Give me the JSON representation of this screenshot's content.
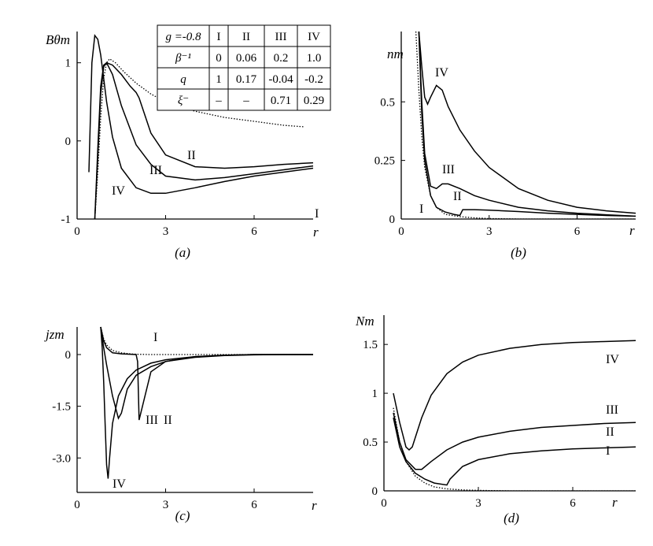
{
  "figure_captions": [
    "(a)",
    "(b)",
    "(c)",
    "(d)"
  ],
  "param_table": {
    "header": [
      "g =-0.8",
      "I",
      "II",
      "III",
      "IV"
    ],
    "rows": [
      {
        "label": "β⁻¹",
        "values": [
          "0",
          "0.06",
          "0.2",
          "1.0"
        ]
      },
      {
        "label": "q",
        "values": [
          "1",
          "0.17",
          "-0.04",
          "-0.2"
        ]
      },
      {
        "label": "ξ⁻",
        "values": [
          "–",
          "–",
          "0.71",
          "0.29"
        ]
      }
    ]
  },
  "chart_data": [
    {
      "type": "line",
      "panel": "a",
      "ylabel": "Bθm",
      "xlabel": "r",
      "xlim": [
        0,
        8
      ],
      "ylim": [
        -1,
        1.4
      ],
      "xticks": [
        "0",
        "3",
        "6"
      ],
      "yticks": [
        "-1",
        "0",
        "1"
      ],
      "series": [
        {
          "name": "I",
          "style": "dotted",
          "x": [
            0.6,
            0.7,
            0.8,
            0.9,
            1.0,
            1.1,
            1.3,
            1.6,
            2.0,
            2.5,
            3.0,
            4.0,
            5.0,
            6.0,
            7.0,
            7.7
          ],
          "y": [
            -1.0,
            -0.4,
            0.3,
            0.8,
            1.0,
            1.05,
            1.0,
            0.88,
            0.74,
            0.6,
            0.5,
            0.38,
            0.3,
            0.25,
            0.2,
            0.18
          ]
        },
        {
          "name": "II",
          "style": "solid",
          "x": [
            0.6,
            0.7,
            0.8,
            0.9,
            1.0,
            1.2,
            1.5,
            1.8,
            2.0,
            2.1,
            2.5,
            3.0,
            4.0,
            5.0,
            6.0,
            7.0,
            8.0
          ],
          "y": [
            -1.0,
            -0.2,
            0.6,
            0.95,
            1.0,
            0.97,
            0.85,
            0.7,
            0.62,
            0.55,
            0.1,
            -0.18,
            -0.33,
            -0.35,
            -0.33,
            -0.3,
            -0.28
          ]
        },
        {
          "name": "III",
          "style": "solid",
          "x": [
            0.6,
            0.7,
            0.8,
            0.9,
            1.0,
            1.2,
            1.5,
            2.0,
            2.5,
            3.0,
            4.0,
            5.0,
            6.0,
            7.0,
            8.0
          ],
          "y": [
            -1.0,
            -0.1,
            0.7,
            0.97,
            1.0,
            0.85,
            0.45,
            -0.05,
            -0.3,
            -0.45,
            -0.5,
            -0.47,
            -0.42,
            -0.37,
            -0.32
          ]
        },
        {
          "name": "IV",
          "style": "solid",
          "x": [
            0.4,
            0.5,
            0.6,
            0.7,
            0.8,
            0.9,
            1.0,
            1.2,
            1.5,
            2.0,
            2.5,
            3.0,
            4.0,
            5.0,
            6.0,
            7.0,
            8.0
          ],
          "y": [
            -0.4,
            1.0,
            1.35,
            1.3,
            1.1,
            0.8,
            0.5,
            0.05,
            -0.35,
            -0.6,
            -0.67,
            -0.67,
            -0.6,
            -0.52,
            -0.45,
            -0.4,
            -0.35
          ]
        }
      ]
    },
    {
      "type": "line",
      "panel": "b",
      "ylabel": "nm",
      "xlabel": "r",
      "xlim": [
        0,
        8
      ],
      "ylim": [
        0,
        0.8
      ],
      "xticks": [
        "0",
        "3",
        "6"
      ],
      "yticks": [
        "0",
        "0.25",
        "0.5"
      ],
      "series": [
        {
          "name": "I",
          "style": "dotted",
          "x": [
            0.5,
            0.6,
            0.7,
            0.8,
            1.0,
            1.2,
            1.5,
            2.0,
            2.5,
            3.0,
            4.0,
            6.0,
            8.0
          ],
          "y": [
            0.8,
            0.55,
            0.35,
            0.22,
            0.1,
            0.05,
            0.02,
            0.01,
            0.005,
            0.002,
            0.0,
            0.0,
            0.0
          ]
        },
        {
          "name": "II",
          "style": "solid",
          "x": [
            0.6,
            0.7,
            0.8,
            1.0,
            1.2,
            1.5,
            1.8,
            2.0,
            2.1,
            2.5,
            3.0,
            4.0,
            5.0,
            6.0,
            7.0,
            8.0
          ],
          "y": [
            0.8,
            0.45,
            0.25,
            0.1,
            0.05,
            0.03,
            0.02,
            0.015,
            0.04,
            0.04,
            0.038,
            0.032,
            0.025,
            0.02,
            0.015,
            0.012
          ]
        },
        {
          "name": "III",
          "style": "solid",
          "x": [
            0.6,
            0.7,
            0.8,
            1.0,
            1.2,
            1.4,
            1.6,
            2.0,
            2.5,
            3.0,
            4.0,
            5.0,
            6.0,
            7.0,
            8.0
          ],
          "y": [
            0.8,
            0.5,
            0.28,
            0.14,
            0.13,
            0.15,
            0.15,
            0.13,
            0.1,
            0.08,
            0.05,
            0.035,
            0.025,
            0.018,
            0.012
          ]
        },
        {
          "name": "IV",
          "style": "solid",
          "x": [
            0.6,
            0.7,
            0.8,
            0.9,
            1.0,
            1.2,
            1.4,
            1.6,
            2.0,
            2.5,
            3.0,
            4.0,
            5.0,
            6.0,
            7.0,
            8.0
          ],
          "y": [
            0.8,
            0.65,
            0.52,
            0.49,
            0.52,
            0.57,
            0.55,
            0.48,
            0.38,
            0.29,
            0.22,
            0.13,
            0.08,
            0.05,
            0.035,
            0.025
          ]
        }
      ]
    },
    {
      "type": "line",
      "panel": "c",
      "ylabel": "jzm",
      "xlabel": "r",
      "xlim": [
        0,
        8
      ],
      "ylim": [
        -4.0,
        0.8
      ],
      "xticks": [
        "0",
        "3",
        "6"
      ],
      "yticks": [
        "-3.0",
        "-1.5",
        "0"
      ],
      "series": [
        {
          "name": "I",
          "style": "dotted",
          "x": [
            0.8,
            0.9,
            1.0,
            1.2,
            1.5,
            1.8,
            2.0,
            2.5,
            3.0,
            4.0,
            5.0,
            6.0,
            7.0,
            8.0
          ],
          "y": [
            0.8,
            0.45,
            0.28,
            0.12,
            0.05,
            0.02,
            0.01,
            0.0,
            0.0,
            0.0,
            0.0,
            0.0,
            0.0,
            0.0
          ]
        },
        {
          "name": "II",
          "style": "solid",
          "x": [
            0.8,
            0.9,
            1.0,
            1.2,
            1.5,
            1.8,
            2.0,
            2.05,
            2.1,
            2.5,
            3.0,
            4.0,
            5.0,
            6.0,
            7.0,
            8.0
          ],
          "y": [
            0.8,
            0.4,
            0.2,
            0.05,
            0.02,
            0.01,
            0.0,
            -0.2,
            -1.9,
            -0.5,
            -0.2,
            -0.06,
            -0.02,
            0.0,
            0.0,
            0.0
          ]
        },
        {
          "name": "III",
          "style": "solid",
          "x": [
            0.8,
            0.9,
            1.0,
            1.2,
            1.4,
            1.5,
            1.7,
            2.0,
            2.5,
            3.0,
            4.0,
            5.0,
            6.0,
            7.0,
            8.0
          ],
          "y": [
            0.8,
            0.2,
            -0.3,
            -1.2,
            -1.85,
            -1.7,
            -1.0,
            -0.6,
            -0.35,
            -0.2,
            -0.08,
            -0.03,
            -0.01,
            0.0,
            0.0
          ]
        },
        {
          "name": "IV",
          "style": "solid",
          "x": [
            0.8,
            0.85,
            0.9,
            0.95,
            1.0,
            1.05,
            1.1,
            1.2,
            1.4,
            1.7,
            2.0,
            2.5,
            3.0,
            4.0,
            5.0,
            6.0,
            7.0,
            8.0
          ],
          "y": [
            0.8,
            0.2,
            -0.8,
            -2.0,
            -3.2,
            -3.6,
            -3.0,
            -2.0,
            -1.2,
            -0.7,
            -0.45,
            -0.25,
            -0.15,
            -0.06,
            -0.02,
            0.0,
            0.0,
            0.0
          ]
        }
      ]
    },
    {
      "type": "line",
      "panel": "d",
      "ylabel": "Nm",
      "xlabel": "r",
      "xlim": [
        0,
        8
      ],
      "ylim": [
        0,
        1.8
      ],
      "xticks": [
        "0",
        "3",
        "6"
      ],
      "yticks": [
        "0",
        "0.5",
        "1",
        "1.5"
      ],
      "series": [
        {
          "name": "I",
          "style": "dotted",
          "x": [
            0.3,
            0.5,
            0.7,
            1.0,
            1.3,
            1.6,
            2.0,
            2.5,
            3.0,
            4.0,
            5.0,
            6.0,
            7.0,
            8.0
          ],
          "y": [
            0.85,
            0.5,
            0.3,
            0.15,
            0.08,
            0.04,
            0.02,
            0.01,
            0.005,
            0.0,
            0.0,
            0.0,
            0.0,
            0.0
          ]
        },
        {
          "name": "II",
          "style": "solid",
          "x": [
            0.3,
            0.5,
            0.7,
            1.0,
            1.3,
            1.6,
            2.0,
            2.1,
            2.5,
            3.0,
            4.0,
            5.0,
            6.0,
            7.0,
            8.0
          ],
          "y": [
            0.75,
            0.45,
            0.3,
            0.18,
            0.12,
            0.08,
            0.06,
            0.12,
            0.25,
            0.32,
            0.38,
            0.41,
            0.43,
            0.44,
            0.45
          ]
        },
        {
          "name": "III",
          "style": "solid",
          "x": [
            0.3,
            0.5,
            0.7,
            1.0,
            1.2,
            1.5,
            2.0,
            2.5,
            3.0,
            4.0,
            5.0,
            6.0,
            7.0,
            8.0
          ],
          "y": [
            0.8,
            0.5,
            0.32,
            0.22,
            0.22,
            0.3,
            0.42,
            0.5,
            0.55,
            0.61,
            0.65,
            0.67,
            0.69,
            0.7
          ]
        },
        {
          "name": "IV",
          "style": "solid",
          "x": [
            0.3,
            0.5,
            0.7,
            0.8,
            0.9,
            1.0,
            1.2,
            1.5,
            2.0,
            2.5,
            3.0,
            4.0,
            5.0,
            6.0,
            7.0,
            8.0
          ],
          "y": [
            1.0,
            0.7,
            0.45,
            0.42,
            0.45,
            0.55,
            0.75,
            0.98,
            1.2,
            1.32,
            1.39,
            1.46,
            1.5,
            1.52,
            1.53,
            1.54
          ]
        }
      ]
    }
  ]
}
